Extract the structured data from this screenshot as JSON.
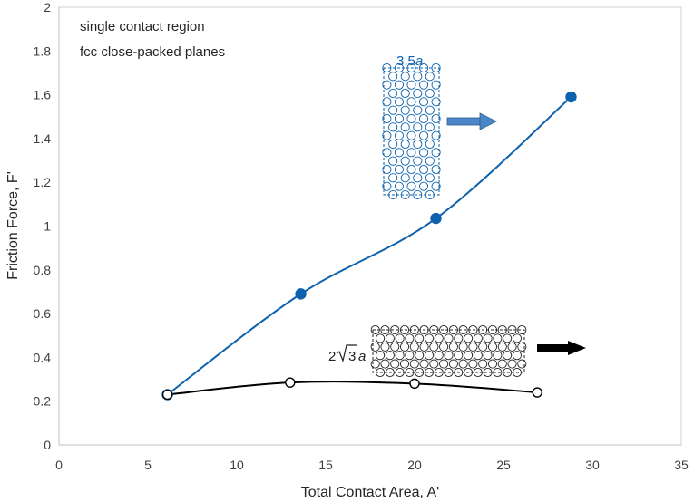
{
  "chart_data": {
    "type": "line",
    "title": "",
    "xlabel": "Total Contact Area, A'",
    "ylabel": "Friction Force, F'",
    "xlim": [
      0,
      35
    ],
    "ylim": [
      0,
      2
    ],
    "xticks": [
      "0",
      "5",
      "10",
      "15",
      "20",
      "25",
      "30",
      "35"
    ],
    "yticks": [
      "0",
      "0.2",
      "0.4",
      "0.6",
      "0.8",
      "1",
      "1.2",
      "1.4",
      "1.6",
      "1.8",
      "2"
    ],
    "grid": false,
    "annotations": [
      "single contact region",
      "fcc close-packed planes"
    ],
    "series": [
      {
        "color": "#0e62ad",
        "marker": "filled-circle",
        "x": [
          6.1,
          13.6,
          21.2,
          28.8
        ],
        "y": [
          0.23,
          0.69,
          1.035,
          1.59
        ]
      },
      {
        "color": "#000000",
        "marker": "open-circle",
        "x": [
          6.1,
          13.0,
          20.0,
          26.9
        ],
        "y": [
          0.23,
          0.285,
          0.28,
          0.24
        ]
      }
    ],
    "insets": [
      {
        "label_prefix": "3.5",
        "label_var": "a",
        "color": "#0e62ad",
        "arrow_color": "#4a86c8"
      },
      {
        "label_prefix": "2",
        "label_root": "3",
        "label_var": "a",
        "color": "#222222",
        "arrow_color": "#000000"
      }
    ]
  }
}
